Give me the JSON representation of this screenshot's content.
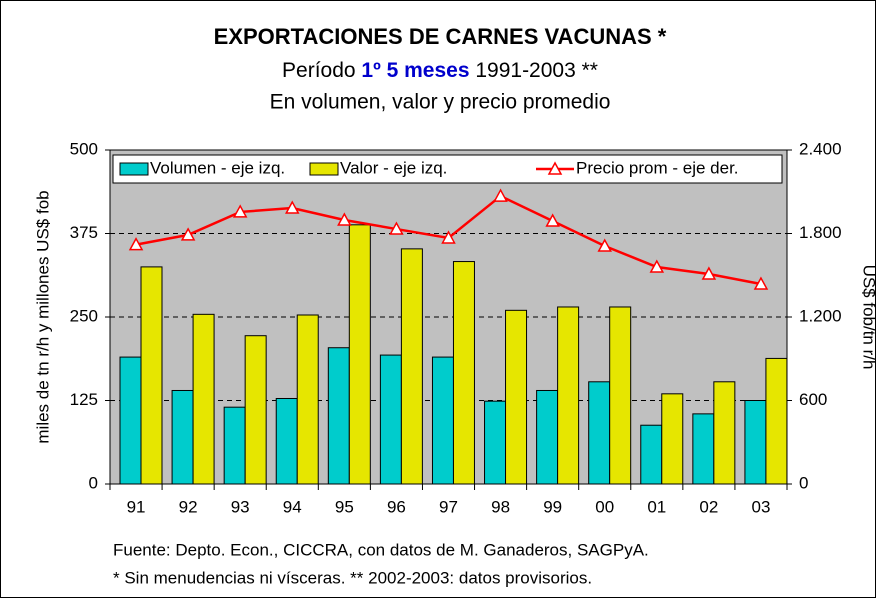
{
  "chart_data": {
    "type": "bar_line",
    "title": "EXPORTACIONES DE CARNES VACUNAS *",
    "subtitle": [
      "Período ",
      "1º 5 meses",
      " 1991-2003 **"
    ],
    "subtitle2": "En volumen, valor y precio promedio",
    "ylabel": "miles de tn r/h y millones US$ fob",
    "y2label": "US$ fob/tn r/h",
    "categories": [
      "91",
      "92",
      "93",
      "94",
      "95",
      "96",
      "97",
      "98",
      "99",
      "00",
      "01",
      "02",
      "03"
    ],
    "series": [
      {
        "name": "Volumen - eje izq.",
        "color": "#00cccc",
        "type": "bar",
        "values": [
          190,
          140,
          115,
          128,
          204,
          193,
          190,
          124,
          140,
          153,
          88,
          105,
          125
        ]
      },
      {
        "name": "Valor - eje izq.",
        "color": "#e6e600",
        "type": "bar",
        "values": [
          325,
          254,
          222,
          253,
          388,
          352,
          333,
          260,
          265,
          265,
          135,
          153,
          188
        ]
      },
      {
        "name": "Precio prom - eje der.",
        "color": "#ff0000",
        "type": "line",
        "axis": "y2",
        "values": [
          1720,
          1790,
          1955,
          1983,
          1897,
          1832,
          1768,
          2069,
          1890,
          1710,
          1559,
          1509,
          1437
        ]
      }
    ],
    "ylim": [
      0,
      500
    ],
    "yticks": [
      0,
      125,
      250,
      375,
      500
    ],
    "y2lim": [
      0,
      2400
    ],
    "y2ticks": [
      0,
      {
        "value": 600,
        "label": "600"
      },
      {
        "value": 1200,
        "label": "1.200"
      },
      {
        "value": 1800,
        "label": "1.800"
      },
      {
        "value": 2400,
        "label": "2.400"
      }
    ],
    "grid": true,
    "notes": [
      "Fuente: Depto. Econ., CICCRA, con datos de M. Ganaderos, SAGPyA.",
      "* Sin menudencias ni vísceras. ** 2002-2003: datos provisorios."
    ]
  }
}
